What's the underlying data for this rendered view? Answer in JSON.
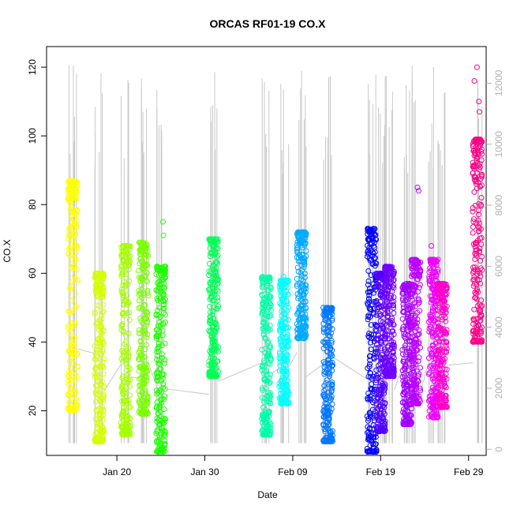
{
  "chart_data": {
    "type": "scatter",
    "title": "ORCAS RF01-19 CO.X",
    "xlabel": "Date",
    "ylabel": "CO.X",
    "x_range": [
      "2016-01-12",
      "2016-03-02"
    ],
    "ylim": [
      7,
      126
    ],
    "y_ticks": [
      20,
      40,
      60,
      80,
      100,
      120
    ],
    "x_ticks": [
      {
        "date": "2016-01-20",
        "label": "Jan 20"
      },
      {
        "date": "2016-01-30",
        "label": "Jan 30"
      },
      {
        "date": "2016-02-09",
        "label": "Feb 09"
      },
      {
        "date": "2016-02-19",
        "label": "Feb 19"
      },
      {
        "date": "2016-02-29",
        "label": "Feb 29"
      }
    ],
    "secondary_axis": {
      "color": "#b0b0b0",
      "range": [
        -200,
        13200
      ],
      "ticks": [
        0,
        2000,
        4000,
        6000,
        8000,
        10000,
        12000
      ]
    },
    "grid": false,
    "marker": "open-circle",
    "series": [
      {
        "flight": 1,
        "date": "2016-01-15",
        "color": "#ffff00",
        "ymin": 20,
        "ymax": 87,
        "outliers": []
      },
      {
        "flight": 2,
        "date": "2016-01-18",
        "color": "#d4ff00",
        "ymin": 11,
        "ymax": 60,
        "outliers": []
      },
      {
        "flight": 3,
        "date": "2016-01-21",
        "color": "#a6ff00",
        "ymin": 13,
        "ymax": 68,
        "outliers": []
      },
      {
        "flight": 4,
        "date": "2016-01-23",
        "color": "#7aff00",
        "ymin": 19,
        "ymax": 69,
        "outliers": []
      },
      {
        "flight": 5,
        "date": "2016-01-25",
        "color": "#1eff00",
        "ymin": 8,
        "ymax": 62,
        "outliers": [
          75,
          71
        ]
      },
      {
        "flight": 6,
        "date": "2016-01-31",
        "color": "#00ff55",
        "ymin": 30,
        "ymax": 70,
        "outliers": []
      },
      {
        "flight": 7,
        "date": "2016-02-06",
        "color": "#00ffaa",
        "ymin": 13,
        "ymax": 59,
        "outliers": []
      },
      {
        "flight": 8,
        "date": "2016-02-08",
        "color": "#00ffff",
        "ymin": 22,
        "ymax": 58,
        "outliers": [
          59
        ]
      },
      {
        "flight": 9,
        "date": "2016-02-10",
        "color": "#00aaff",
        "ymin": 41,
        "ymax": 72,
        "outliers": []
      },
      {
        "flight": 10,
        "date": "2016-02-13",
        "color": "#0077ff",
        "ymin": 11,
        "ymax": 50,
        "outliers": []
      },
      {
        "flight": 11,
        "date": "2016-02-18",
        "color": "#0000ff",
        "ymin": 8,
        "ymax": 73,
        "outliers": []
      },
      {
        "flight": 12,
        "date": "2016-02-19",
        "color": "#5000ff",
        "ymin": 14,
        "ymax": 60,
        "outliers": []
      },
      {
        "flight": 13,
        "date": "2016-02-20",
        "color": "#7000ff",
        "ymin": 30,
        "ymax": 62,
        "outliers": []
      },
      {
        "flight": 14,
        "date": "2016-02-22",
        "color": "#a000ff",
        "ymin": 16,
        "ymax": 57,
        "outliers": []
      },
      {
        "flight": 15,
        "date": "2016-02-23",
        "color": "#bb00ff",
        "ymin": 22,
        "ymax": 64,
        "outliers": [
          85,
          84
        ]
      },
      {
        "flight": 16,
        "date": "2016-02-25",
        "color": "#ee00ff",
        "ymin": 18,
        "ymax": 64,
        "outliers": [
          68
        ]
      },
      {
        "flight": 17,
        "date": "2016-02-26",
        "color": "#ff00cc",
        "ymin": 21,
        "ymax": 57,
        "outliers": []
      },
      {
        "flight": 18,
        "date": "2016-03-01",
        "color": "#ff0088",
        "ymin": 40,
        "ymax": 99,
        "outliers": [
          120,
          116,
          110,
          107
        ]
      }
    ]
  }
}
